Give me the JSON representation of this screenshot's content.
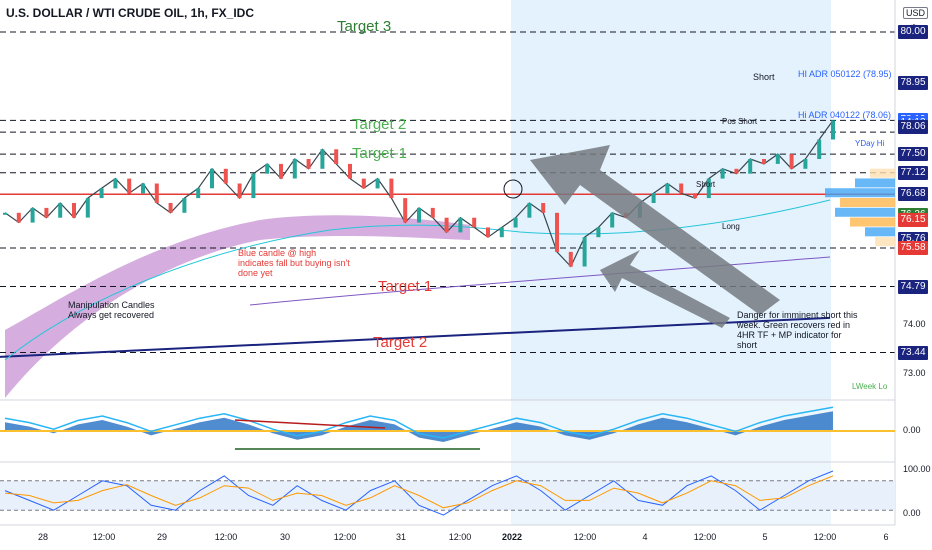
{
  "chart_data": {
    "type": "line",
    "title": "U.S. DOLLAR / WTI CRUDE OIL, 1h, FX_IDC",
    "currency": "USD",
    "ylim": [
      72.4,
      80.6
    ],
    "price_axis_ticks": [
      "80.00",
      "78.95",
      "78.19",
      "14:13",
      "78.06",
      "77.50",
      "77.12",
      "76.68",
      "76.26",
      "76.15",
      "75.76",
      "75.58",
      "74.79",
      "74.00",
      "73.44",
      "73.00"
    ],
    "price_axis_tick_values": [
      80.0,
      78.95,
      78.19,
      78.13,
      78.06,
      77.5,
      77.12,
      76.68,
      76.26,
      76.15,
      75.76,
      75.58,
      74.79,
      74.0,
      73.44,
      73.0
    ],
    "x_ticks": [
      "28",
      "12:00",
      "29",
      "12:00",
      "30",
      "12:00",
      "31",
      "12:00",
      "2022",
      "12:00",
      "4",
      "12:00",
      "5",
      "12:00",
      "6"
    ],
    "horizontal_levels": [
      {
        "label": "Target 3",
        "value": 80.0,
        "color": "#2e7d32"
      },
      {
        "label": "Target 2",
        "value": 77.95,
        "color": "#4caf50"
      },
      {
        "label": "Target-1",
        "value": 77.5,
        "color": "#4caf50"
      },
      {
        "label": "Target 1",
        "value": 74.79,
        "color": "#e53935"
      },
      {
        "label": "Target 2",
        "value": 73.44,
        "color": "#e53935"
      }
    ],
    "labels": {
      "short_top": "Short",
      "hi_adr_1": "HI ADR 050122 (78.95)",
      "hi_adr_2": "Hi ADR 040122 (78.06)",
      "pos_short": "Pos Short",
      "short_mid": "Short",
      "long": "Long",
      "yday_hi": "YDay Hi",
      "lweek_lo": "LWeek Lo",
      "manipulation": "Manipulation Candles Always get recovered",
      "blue_candle": "Blue candle @ high indicates fall but buying isn't done yet",
      "danger": "Danger for imminent short this week. Green recovers red in 4HR TF + MP indicator for short"
    },
    "price_path": [
      76.3,
      76.1,
      76.4,
      76.2,
      76.5,
      76.2,
      76.6,
      76.8,
      77.0,
      76.7,
      76.9,
      76.5,
      76.3,
      76.6,
      76.8,
      77.2,
      76.9,
      76.6,
      77.1,
      77.3,
      77.0,
      77.4,
      77.2,
      77.6,
      77.3,
      77.0,
      76.8,
      77.0,
      76.6,
      76.1,
      76.4,
      76.2,
      75.9,
      76.2,
      76.0,
      75.8,
      76.0,
      76.2,
      76.5,
      76.3,
      75.5,
      75.2,
      75.8,
      76.0,
      76.3,
      76.2,
      76.5,
      76.7,
      76.9,
      76.7,
      76.6,
      77.0,
      77.2,
      77.1,
      77.4,
      77.3,
      77.5,
      77.2,
      77.4,
      77.8,
      78.19
    ],
    "oscillator": {
      "zero_label": "0.00",
      "values": [
        0.4,
        0.2,
        -0.1,
        0.3,
        0.5,
        0.2,
        -0.2,
        0.1,
        0.4,
        0.6,
        0.3,
        -0.1,
        -0.4,
        -0.2,
        0.2,
        0.5,
        0.3,
        -0.3,
        -0.5,
        -0.2,
        0.1,
        0.4,
        0.2,
        -0.2,
        -0.4,
        -0.1,
        0.3,
        0.6,
        0.4,
        0.1,
        -0.2,
        0.2,
        0.5,
        0.7,
        0.9
      ]
    },
    "stochastic": {
      "ticks": [
        "100.00",
        "0.00"
      ],
      "k": [
        60,
        40,
        20,
        50,
        80,
        70,
        30,
        20,
        60,
        90,
        50,
        30,
        70,
        40,
        20,
        60,
        80,
        30,
        10,
        40,
        70,
        90,
        60,
        20,
        50,
        80,
        40,
        30,
        70,
        90,
        60,
        20,
        50,
        80,
        100
      ],
      "d": [
        55,
        50,
        35,
        40,
        60,
        72,
        50,
        30,
        45,
        70,
        65,
        40,
        55,
        50,
        30,
        45,
        70,
        50,
        25,
        35,
        60,
        80,
        70,
        40,
        40,
        65,
        55,
        35,
        55,
        80,
        70,
        40,
        45,
        70,
        90
      ]
    }
  }
}
